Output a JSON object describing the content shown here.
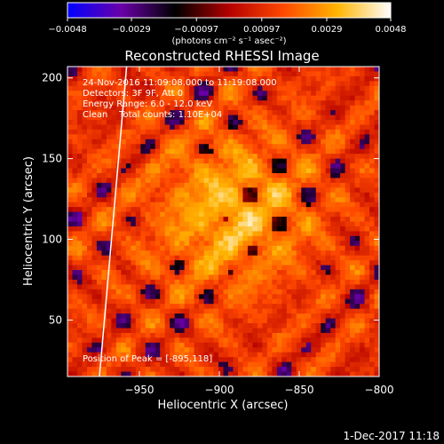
{
  "chart_data": {
    "type": "heatmap",
    "title": "Reconstructed RHESSI Image",
    "xlabel": "Heliocentric X (arcsec)",
    "ylabel": "Heliocentric Y (arcsec)",
    "xlim": [
      -995,
      -800
    ],
    "ylim": [
      15,
      207
    ],
    "x_ticks": [
      -950,
      -900,
      -850,
      -800
    ],
    "x_tick_labels": [
      "−950",
      "−900",
      "−850",
      "−800"
    ],
    "y_ticks": [
      50,
      100,
      150,
      200
    ],
    "y_tick_labels": [
      "50",
      "100",
      "150",
      "200"
    ],
    "colorbar": {
      "range": [
        -0.0048,
        0.0048
      ],
      "tick_values": [
        -0.0048,
        -0.0029,
        -0.00097,
        0.00097,
        0.0029,
        0.0048
      ],
      "tick_labels": [
        "−0.0048",
        "−0.0029",
        "−0.00097",
        "0.00097",
        "0.0029",
        "0.0048"
      ],
      "unit_label": "(photons cm⁻² s⁻¹ asec⁻²)",
      "colors": [
        "#0000ff",
        "#6a00a8",
        "#000000",
        "#b40000",
        "#ff4800",
        "#ffb400",
        "#ffffff"
      ]
    },
    "annotations": [
      "24-Nov-2016 11:09:08.000 to 11:19:08.000",
      "Detectors: 3F 9F, Att 0",
      "Energy Range: 6.0 - 12.0 keV",
      "Clean    Total counts: 1.10E+04"
    ],
    "peak_label": "Position of Peak = [-895,118]",
    "peak": [
      -895,
      118
    ],
    "limb_line": [
      [
        -975,
        15
      ],
      [
        -958,
        207
      ]
    ],
    "grid": false,
    "legend": "none"
  },
  "footer": {
    "timestamp": "1-Dec-2017 11:18"
  }
}
